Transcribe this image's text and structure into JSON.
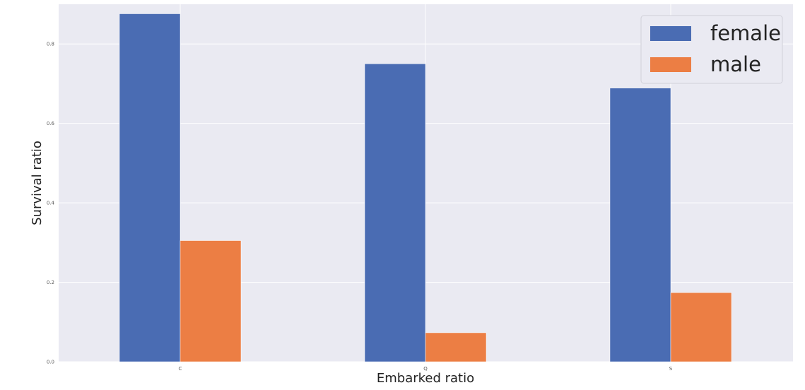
{
  "chart_data": {
    "type": "bar",
    "categories": [
      "C",
      "Q",
      "S"
    ],
    "series": [
      {
        "name": "female",
        "values": [
          0.876,
          0.75,
          0.689
        ],
        "color": "#4a6cb3"
      },
      {
        "name": "male",
        "values": [
          0.305,
          0.073,
          0.174
        ],
        "color": "#ec7e44"
      }
    ],
    "xlabel": "Embarked ratio",
    "ylabel": "Survival ratio",
    "ylim": [
      0,
      0.9
    ],
    "yticks": [
      "0.0",
      "0.2",
      "0.4",
      "0.6",
      "0.8"
    ],
    "grid": true,
    "legend_position": "top-right",
    "background_color": "#eaeaf2",
    "grid_color": "#ffffff"
  }
}
